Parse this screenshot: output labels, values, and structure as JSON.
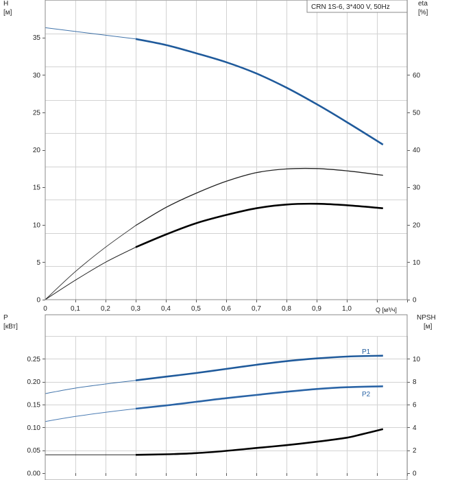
{
  "chart_data": [
    {
      "type": "line",
      "title": "CRN 1S-6, 3*400 V, 50Hz",
      "xlabel": "Q [м³/ч]",
      "ylabel_left": [
        "H",
        "[м]"
      ],
      "ylabel_right": [
        "eta",
        "[%]"
      ],
      "x_ticks": [
        "0",
        "0,1",
        "0,2",
        "0,3",
        "0,4",
        "0,5",
        "0,6",
        "0,7",
        "0,8",
        "0,9",
        "1,0"
      ],
      "xlim": [
        0,
        1.2
      ],
      "y_left_ticks": [
        "0",
        "5",
        "10",
        "15",
        "20",
        "25",
        "30",
        "35"
      ],
      "ylim_left": [
        0,
        40
      ],
      "y_right_ticks": [
        "0",
        "10",
        "20",
        "30",
        "40",
        "50",
        "60"
      ],
      "ylim_right": [
        0,
        80
      ],
      "grid": true,
      "series": [
        {
          "axis": "left",
          "color": "#1f5a9b",
          "x": [
            0,
            0.3,
            0.4,
            0.5,
            0.6,
            0.7,
            0.8,
            0.9,
            1.0,
            1.12
          ],
          "y": [
            36.3,
            34.8,
            34.0,
            32.9,
            31.7,
            30.2,
            28.3,
            26.1,
            23.7,
            20.7
          ],
          "solid_from": 0.3
        },
        {
          "axis": "right",
          "color": "#202020",
          "x": [
            0,
            0.1,
            0.2,
            0.3,
            0.4,
            0.5,
            0.6,
            0.7,
            0.8,
            0.9,
            1.0,
            1.12
          ],
          "y": [
            0,
            7.5,
            14,
            19.8,
            24.6,
            28.4,
            31.6,
            33.9,
            34.9,
            35.0,
            34.4,
            33.2
          ],
          "solid_from": 0.3
        },
        {
          "axis": "left",
          "color": "#000000",
          "x": [
            0,
            0.1,
            0.2,
            0.3,
            0.4,
            0.5,
            0.6,
            0.7,
            0.8,
            0.9,
            1.0,
            1.12
          ],
          "y": [
            0,
            2.6,
            5.0,
            7.0,
            8.7,
            10.2,
            11.3,
            12.2,
            12.7,
            12.8,
            12.6,
            12.2
          ],
          "solid_from": 0.3
        }
      ]
    },
    {
      "type": "line",
      "ylabel_left": [
        "P",
        "[кВт]"
      ],
      "ylabel_right": [
        "NPSH",
        "[м]"
      ],
      "xlim": [
        0,
        1.2
      ],
      "y_left_ticks": [
        "0.00",
        "0.05",
        "0.10",
        "0.15",
        "0.20",
        "0.25"
      ],
      "ylim_left": [
        0,
        0.3
      ],
      "y_right_ticks": [
        "0",
        "2",
        "4",
        "6",
        "8",
        "10"
      ],
      "ylim_right": [
        0,
        12
      ],
      "grid": true,
      "series": [
        {
          "name": "P1",
          "axis": "left",
          "color": "#1f5a9b",
          "x": [
            0,
            0.1,
            0.2,
            0.3,
            0.4,
            0.5,
            0.6,
            0.7,
            0.8,
            0.9,
            1.0,
            1.12
          ],
          "y": [
            0.174,
            0.186,
            0.195,
            0.203,
            0.211,
            0.219,
            0.228,
            0.237,
            0.245,
            0.251,
            0.255,
            0.257
          ],
          "solid_from": 0.3
        },
        {
          "name": "P2",
          "axis": "left",
          "color": "#2a64a6",
          "x": [
            0,
            0.1,
            0.2,
            0.3,
            0.4,
            0.5,
            0.6,
            0.7,
            0.8,
            0.9,
            1.0,
            1.12
          ],
          "y": [
            0.113,
            0.124,
            0.133,
            0.141,
            0.148,
            0.156,
            0.164,
            0.171,
            0.178,
            0.184,
            0.188,
            0.19
          ],
          "solid_from": 0.3
        },
        {
          "axis": "right",
          "color": "#000000",
          "x": [
            0,
            0.3,
            0.4,
            0.5,
            0.6,
            0.7,
            0.8,
            0.9,
            1.0,
            1.05,
            1.12
          ],
          "y": [
            1.6,
            1.6,
            1.65,
            1.75,
            1.95,
            2.2,
            2.45,
            2.75,
            3.1,
            3.4,
            3.85
          ],
          "solid_from": 0.3
        }
      ]
    }
  ]
}
